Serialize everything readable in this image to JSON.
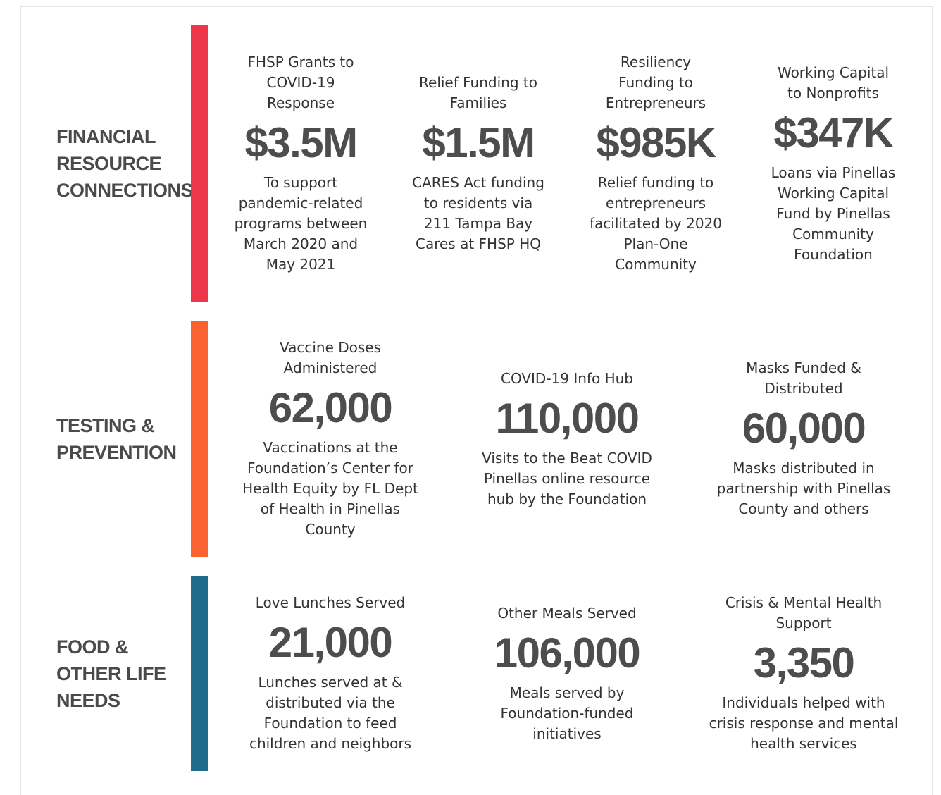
{
  "sections": [
    {
      "label": "Financial Resource Connections",
      "items": [
        {
          "heading": "FHSP Grants to COVID-19 Response",
          "value": "$3.5M",
          "description": "To support pandemic-related programs between March 2020 and May 2021"
        },
        {
          "heading": "Relief Funding to Families",
          "value": "$1.5M",
          "description": "CARES Act funding to residents via 211 Tampa Bay Cares at FHSP HQ"
        },
        {
          "heading": "Resiliency Funding to Entrepreneurs",
          "value": "$985K",
          "description": "Relief funding to entrepreneurs facilitated by 2020 Plan-One Community"
        },
        {
          "heading": "Working Capital to Nonprofits",
          "value": "$347K",
          "description": "Loans via Pinellas Working Capital Fund by Pinellas Community Foundation"
        }
      ]
    },
    {
      "label": "Testing & Prevention",
      "items": [
        {
          "heading": "Vaccine Doses Administered",
          "value": "62,000",
          "description": "Vaccinations at the Foundation’s Center for Health Equity by FL Dept of Health in Pinellas County"
        },
        {
          "heading": "COVID-19 Info Hub",
          "value": "110,000",
          "description": "Visits to the Beat COVID Pinellas online resource hub by the Foundation"
        },
        {
          "heading": "Masks Funded & Distributed",
          "value": "60,000",
          "description": "Masks distributed in partnership with Pinellas County and others"
        }
      ]
    },
    {
      "label": "Food & Other Life Needs",
      "items": [
        {
          "heading": "Love Lunches Served",
          "value": "21,000",
          "description": "Lunches served at & distributed via the Foundation to feed children and neighbors"
        },
        {
          "heading": "Other Meals Served",
          "value": "106,000",
          "description": "Meals served by Foundation-funded initiatives"
        },
        {
          "heading": "Crisis & Mental Health Support",
          "value": "3,350",
          "description": "Individuals helped with crisis response and mental health services"
        }
      ]
    }
  ]
}
